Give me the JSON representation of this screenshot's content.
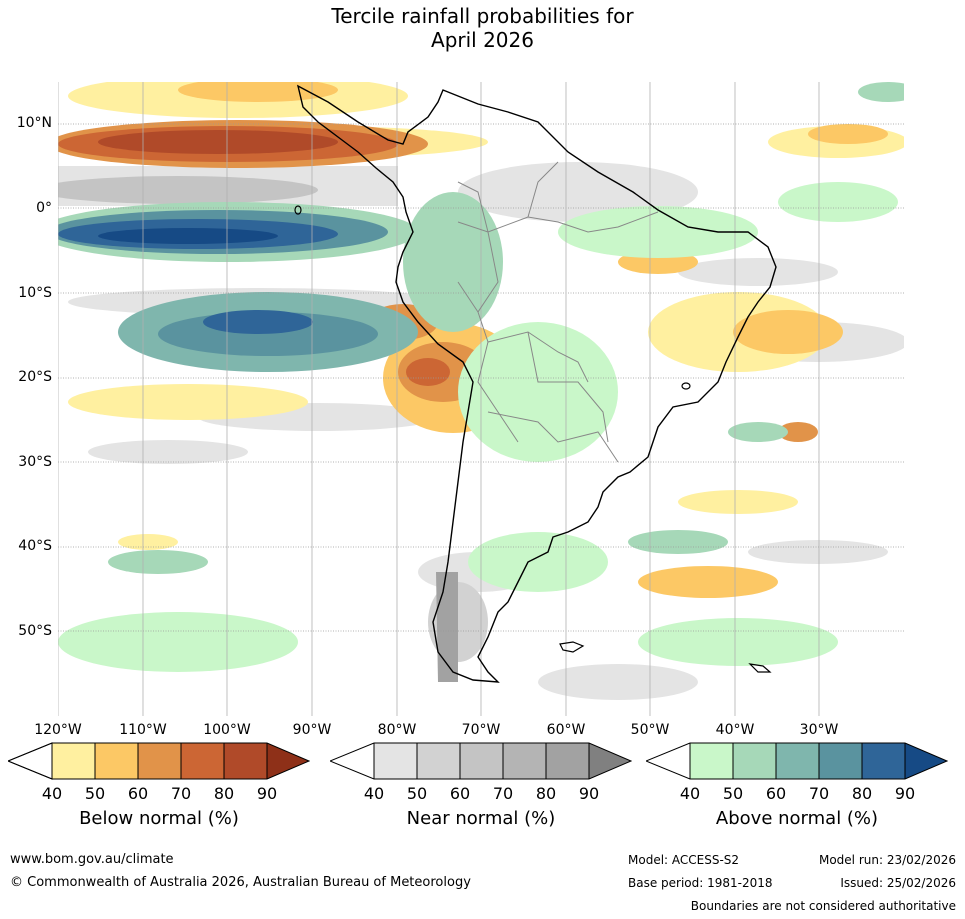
{
  "title_line1": "Tercile rainfall probabilities for",
  "title_line2": "April 2026",
  "lat_labels": [
    "10°N",
    "0°",
    "10°S",
    "20°S",
    "30°S",
    "40°S",
    "50°S"
  ],
  "lon_labels": [
    "120°W",
    "110°W",
    "100°W",
    "90°W",
    "80°W",
    "70°W",
    "60°W",
    "50°W",
    "40°W",
    "30°W"
  ],
  "legends": [
    {
      "title": "Below normal (%)",
      "ticks": [
        "40",
        "50",
        "60",
        "70",
        "80",
        "90"
      ],
      "colors": [
        "#fff0a0",
        "#fcc865",
        "#e19349",
        "#cc6634",
        "#b04a29",
        "#8e3018"
      ]
    },
    {
      "title": "Near normal (%)",
      "ticks": [
        "40",
        "50",
        "60",
        "70",
        "80",
        "90"
      ],
      "colors": [
        "#e4e4e4",
        "#d2d2d2",
        "#c4c4c4",
        "#b4b4b4",
        "#a2a2a2",
        "#808080"
      ]
    },
    {
      "title": "Above normal (%)",
      "ticks": [
        "40",
        "50",
        "60",
        "70",
        "80",
        "90"
      ],
      "colors": [
        "#c9f7c9",
        "#a6d8b8",
        "#7fb6ad",
        "#5a939f",
        "#2f6598",
        "#164a85"
      ]
    }
  ],
  "footer": {
    "website": "www.bom.gov.au/climate",
    "copyright": "© Commonwealth of Australia 2026, Australian Bureau of Meteorology",
    "model": "Model: ACCESS-S2",
    "base_period": "Base period: 1981-2018",
    "model_run": "Model run: 23/02/2026",
    "issued": "Issued: 25/02/2026",
    "disclaimer": "Boundaries are not considered authoritative"
  }
}
